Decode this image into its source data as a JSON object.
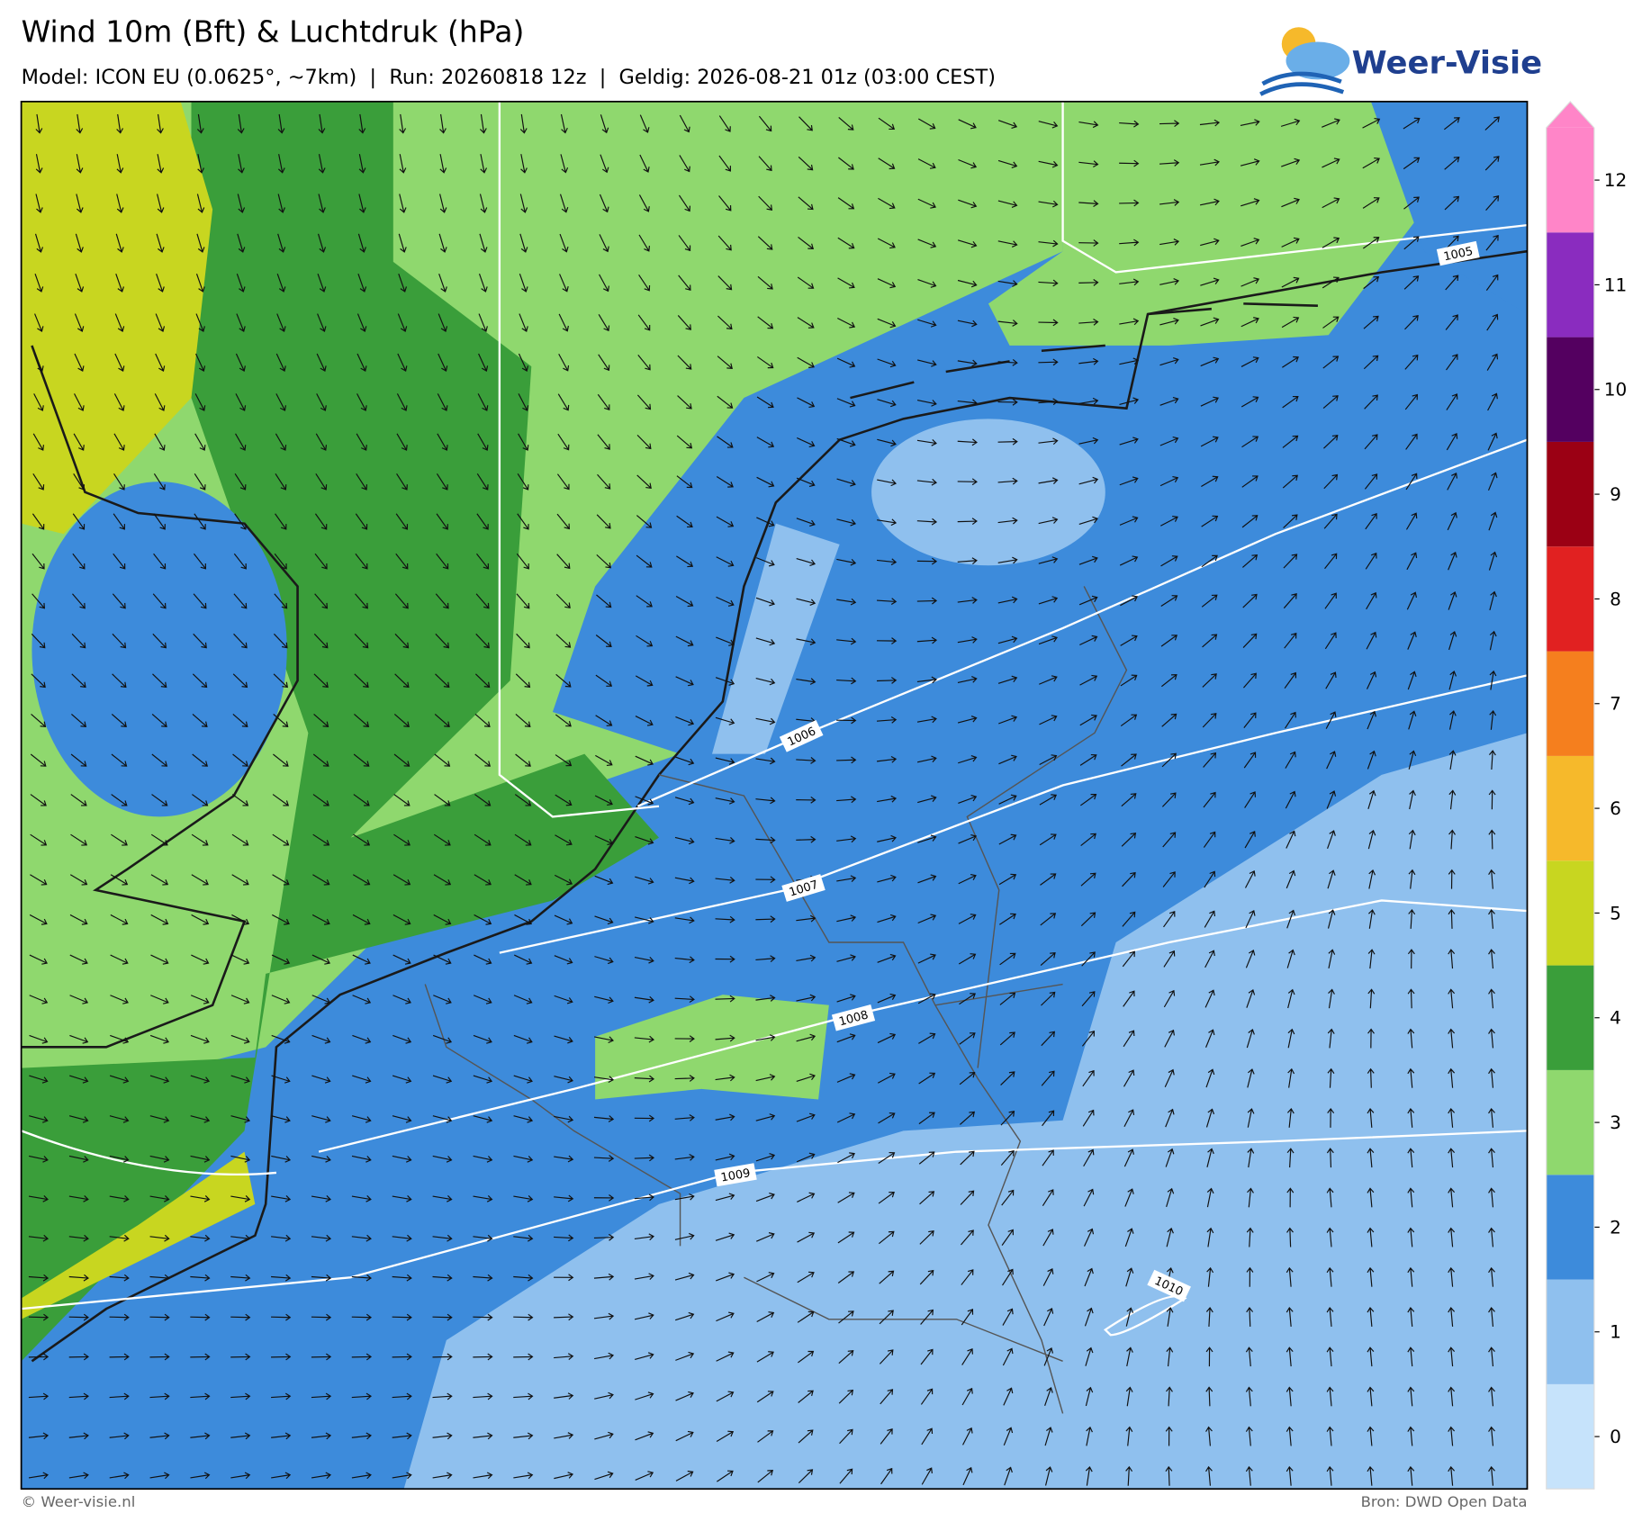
{
  "header": {
    "title": "Wind 10m (Bft) & Luchtdruk (hPa)",
    "subtitle": "Model: ICON EU (0.0625°, ~7km)  |  Run: 20260818 12z  |  Geldig: 2026-08-21 01z (03:00 CEST)"
  },
  "logo": {
    "text": "Weer-Visie"
  },
  "colorbar": {
    "levels": [
      0,
      1,
      2,
      3,
      4,
      5,
      6,
      7,
      8,
      9,
      10,
      11,
      12
    ],
    "colors": [
      "#c6e3fb",
      "#8fc0ee",
      "#3d8bdb",
      "#8fd86e",
      "#3a9e3a",
      "#c8d620",
      "#f6b92b",
      "#f57f1e",
      "#e12121",
      "#9b0014",
      "#540060",
      "#8a2cbf",
      "#ff85c8"
    ]
  },
  "isobars": [
    {
      "value": 1005
    },
    {
      "value": 1006
    },
    {
      "value": 1007
    },
    {
      "value": 1008
    },
    {
      "value": 1009
    },
    {
      "value": 1010
    }
  ],
  "footer": {
    "left": "© Weer-visie.nl",
    "right": "Bron: DWD Open Data"
  }
}
